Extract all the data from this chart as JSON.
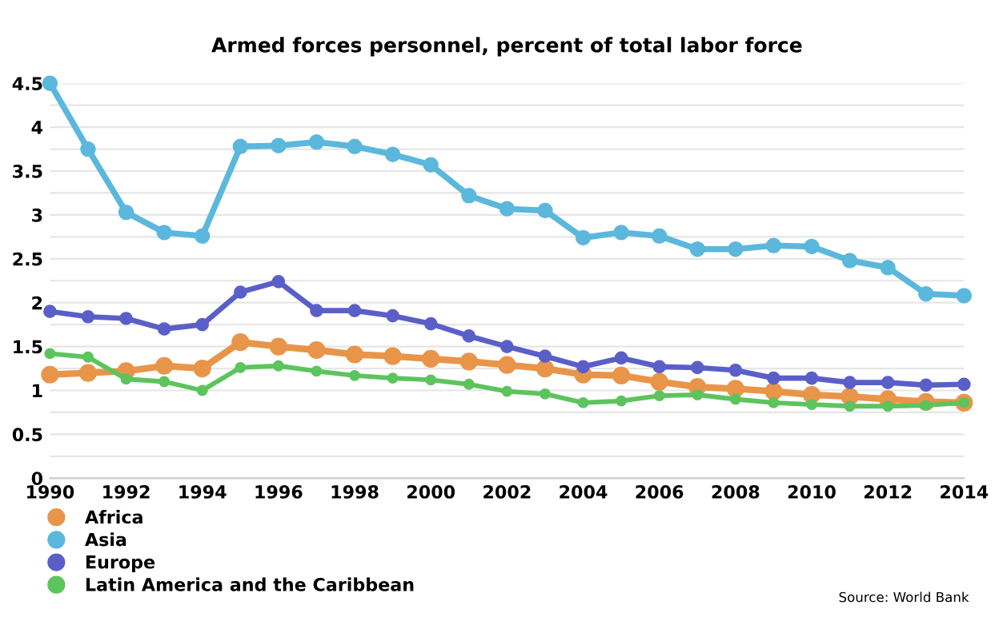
{
  "chart_data": {
    "type": "line",
    "title": "Armed forces personnel, percent of total labor force",
    "x": [
      1990,
      1991,
      1992,
      1993,
      1994,
      1995,
      1996,
      1997,
      1998,
      1999,
      2000,
      2001,
      2002,
      2003,
      2004,
      2005,
      2006,
      2007,
      2008,
      2009,
      2010,
      2011,
      2012,
      2013,
      2014
    ],
    "series": [
      {
        "name": "Africa",
        "color": "#e8954a",
        "values": [
          1.18,
          1.2,
          1.22,
          1.28,
          1.25,
          1.55,
          1.5,
          1.46,
          1.41,
          1.39,
          1.36,
          1.33,
          1.29,
          1.25,
          1.18,
          1.17,
          1.1,
          1.04,
          1.02,
          0.99,
          0.95,
          0.93,
          0.9,
          0.87,
          0.86
        ]
      },
      {
        "name": "Asia",
        "color": "#5bb8dc",
        "values": [
          4.5,
          3.75,
          3.03,
          2.8,
          2.76,
          3.78,
          3.79,
          3.83,
          3.78,
          3.69,
          3.57,
          3.22,
          3.07,
          3.05,
          2.74,
          2.8,
          2.76,
          2.61,
          2.61,
          2.65,
          2.64,
          2.48,
          2.4,
          2.1,
          2.08
        ]
      },
      {
        "name": "Europe",
        "color": "#5a5fc8",
        "values": [
          1.9,
          1.84,
          1.82,
          1.7,
          1.75,
          2.12,
          2.24,
          1.91,
          1.91,
          1.85,
          1.76,
          1.62,
          1.5,
          1.39,
          1.27,
          1.37,
          1.27,
          1.26,
          1.23,
          1.14,
          1.14,
          1.09,
          1.09,
          1.06,
          1.07
        ]
      },
      {
        "name": "Latin America and the Caribbean",
        "color": "#5cc45c",
        "values": [
          1.42,
          1.38,
          1.13,
          1.1,
          1.0,
          1.26,
          1.28,
          1.22,
          1.17,
          1.14,
          1.12,
          1.07,
          0.99,
          0.96,
          0.86,
          0.88,
          0.94,
          0.95,
          0.9,
          0.86,
          0.84,
          0.82,
          0.82,
          0.83,
          0.86
        ]
      }
    ],
    "xlim": [
      1990,
      2014
    ],
    "xticks": [
      1990,
      1992,
      1994,
      1996,
      1998,
      2000,
      2002,
      2004,
      2006,
      2008,
      2010,
      2012,
      2014
    ],
    "ylim": [
      0,
      4.5
    ],
    "yticks": [
      0,
      {
        "value": 0.25,
        "label": null
      },
      0.5,
      {
        "value": 0.75,
        "label": null
      },
      1,
      {
        "value": 1.25,
        "label": null
      },
      1.5,
      {
        "value": 1.75,
        "label": null
      },
      2,
      {
        "value": 2.25,
        "label": null
      },
      2.5,
      {
        "value": 2.75,
        "label": null
      },
      3,
      {
        "value": 3.25,
        "label": null
      },
      3.5,
      {
        "value": 3.75,
        "label": null
      },
      4,
      {
        "value": 4.25,
        "label": null
      },
      4.5
    ],
    "grid": "y",
    "legend": "bottom left",
    "marker": "circle",
    "line_style": "solid",
    "annotations": [
      "Source: World Bank"
    ]
  }
}
